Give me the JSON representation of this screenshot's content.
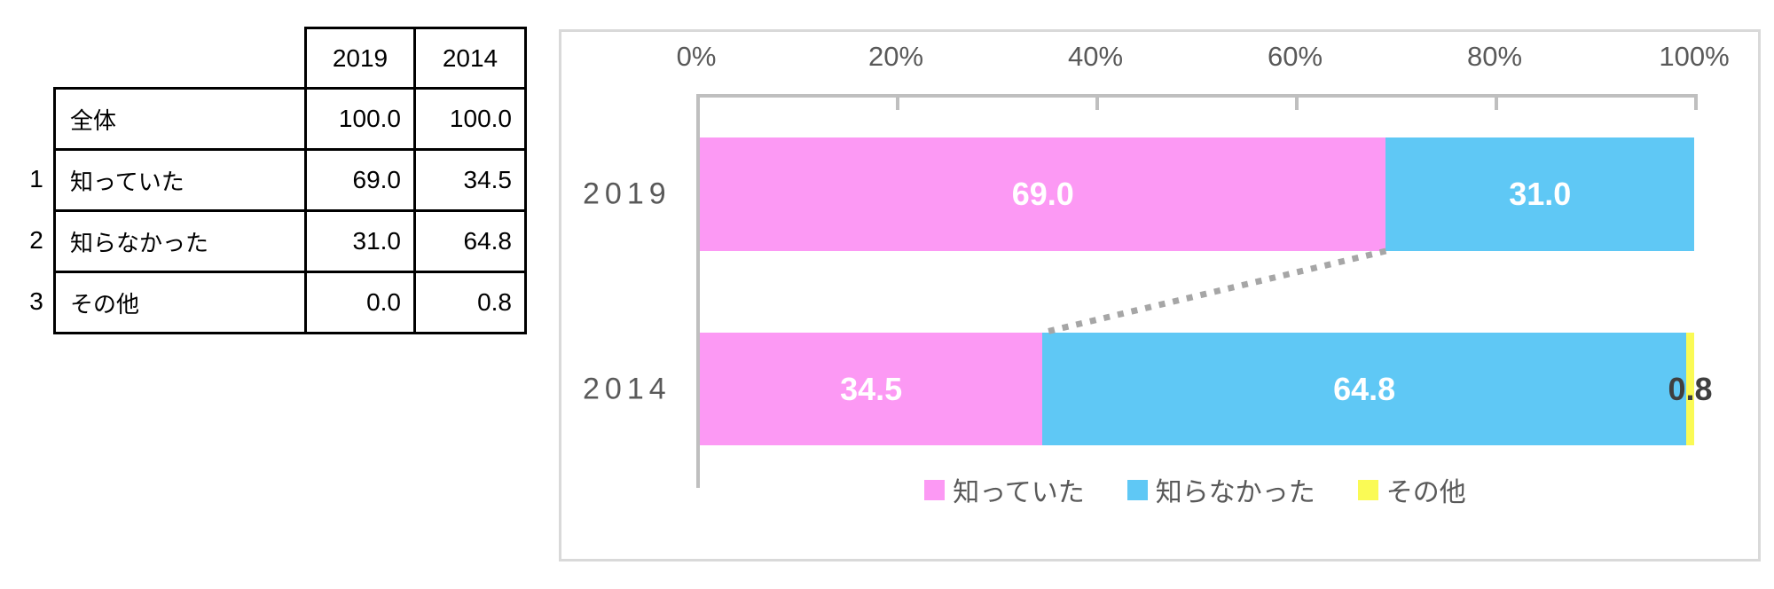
{
  "table": {
    "columns": [
      "2019",
      "2014"
    ],
    "rows": [
      {
        "num": "",
        "label": "全体",
        "values": [
          "100.0",
          "100.0"
        ]
      },
      {
        "num": "1",
        "label": "知っていた",
        "values": [
          "69.0",
          "34.5"
        ]
      },
      {
        "num": "2",
        "label": "知らなかった",
        "values": [
          "31.0",
          "64.8"
        ]
      },
      {
        "num": "3",
        "label": "その他",
        "values": [
          "0.0",
          "0.8"
        ]
      }
    ]
  },
  "chart_data": {
    "type": "bar",
    "stacked": true,
    "orientation": "horizontal",
    "categories": [
      "2019",
      "2014"
    ],
    "series": [
      {
        "name": "知っていた",
        "color": "#FC99F4",
        "values": [
          69.0,
          34.5
        ]
      },
      {
        "name": "知らなかった",
        "color": "#5FC8F5",
        "values": [
          31.0,
          64.8
        ]
      },
      {
        "name": "その他",
        "color": "#FAFA55",
        "values": [
          0.0,
          0.8
        ]
      }
    ],
    "x_ticks": [
      "0%",
      "20%",
      "40%",
      "60%",
      "80%",
      "100%"
    ],
    "xlim": [
      0,
      100
    ],
    "axis_position": "top",
    "legend_position": "bottom",
    "grid": false,
    "value_label_decimals": 1,
    "colors": {
      "axis_text": "#595959",
      "axis_line": "#BFBFBF",
      "category_text": "#595959",
      "value_label_inside": "#FFFFFF",
      "value_label_outside": "#3F3F3F",
      "connector": "#A6A6A6",
      "chart_border": "#D9D9D9",
      "legend_text": "#595959"
    }
  }
}
